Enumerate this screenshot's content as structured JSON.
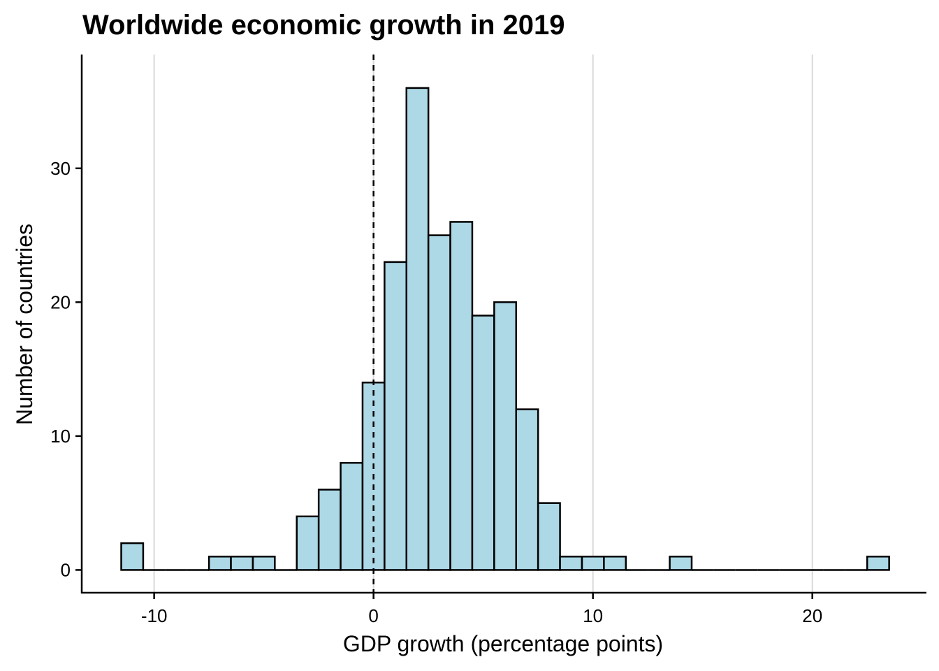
{
  "chart_data": {
    "type": "bar",
    "title": "Worldwide economic growth in 2019",
    "xlabel": "GDP growth (percentage points)",
    "ylabel": "Number of countries",
    "bin_width": 1,
    "bins_start": [
      -11.5,
      -10.5,
      -9.5,
      -8.5,
      -7.5,
      -6.5,
      -5.5,
      -4.5,
      -3.5,
      -2.5,
      -1.5,
      -0.5,
      0.5,
      1.5,
      2.5,
      3.5,
      4.5,
      5.5,
      6.5,
      7.5,
      8.5,
      9.5,
      10.5,
      11.5,
      12.5,
      13.5,
      14.5,
      15.5,
      16.5,
      17.5,
      18.5,
      19.5,
      20.5,
      21.5,
      22.5
    ],
    "values": [
      2,
      0,
      0,
      0,
      1,
      1,
      1,
      0,
      4,
      6,
      8,
      14,
      23,
      36,
      25,
      26,
      19,
      20,
      12,
      5,
      1,
      1,
      1,
      0,
      0,
      1,
      0,
      0,
      0,
      0,
      0,
      0,
      0,
      0,
      1
    ],
    "xlim": [
      -13.3,
      25.2
    ],
    "ylim": [
      -1.7,
      38.5
    ],
    "x_ticks": [
      -10,
      0,
      10,
      20
    ],
    "x_tick_labels": [
      "-10",
      "0",
      "10",
      "20"
    ],
    "y_ticks": [
      0,
      10,
      20,
      30
    ],
    "y_tick_labels": [
      "0",
      "10",
      "20",
      "30"
    ],
    "vertical_gridlines": true,
    "reference_line": {
      "x": 0,
      "style": "dashed"
    },
    "colors": {
      "bar_fill": "#add8e6",
      "bar_stroke": "#000000",
      "grid": "#d9d9d9"
    }
  }
}
